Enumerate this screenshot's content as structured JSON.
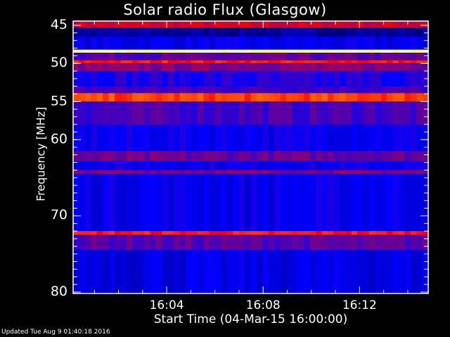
{
  "chart_data": {
    "type": "heatmap",
    "title": "Solar radio Flux (Glasgow)",
    "xlabel": "Start Time (04-Mar-15 16:00:00)",
    "ylabel": "Frequency [MHz]",
    "xlim_minutes": [
      0,
      14.85
    ],
    "ylim": [
      45,
      80
    ],
    "y_ticks": [
      45,
      50,
      55,
      60,
      70,
      80
    ],
    "x_ticks": [
      {
        "minute": 4,
        "label": "16:04"
      },
      {
        "minute": 8,
        "label": "16:08"
      },
      {
        "minute": 12,
        "label": "16:12"
      }
    ],
    "colormap": [
      "#000000",
      "#0000ff",
      "#ff0000",
      "#ffff00",
      "#ffffff"
    ],
    "bands": [
      {
        "f0": 45.0,
        "f1": 45.3,
        "level": 0.55
      },
      {
        "f0": 45.3,
        "f1": 46.5,
        "level": 0.18
      },
      {
        "f0": 46.5,
        "f1": 48.2,
        "level": 0.28
      },
      {
        "f0": 48.2,
        "f1": 48.6,
        "level": 0.95
      },
      {
        "f0": 48.6,
        "f1": 49.6,
        "level": 0.4
      },
      {
        "f0": 49.6,
        "f1": 50.0,
        "level": 0.62
      },
      {
        "f0": 50.0,
        "f1": 51.0,
        "level": 0.45
      },
      {
        "f0": 51.0,
        "f1": 53.0,
        "level": 0.33
      },
      {
        "f0": 53.0,
        "f1": 53.9,
        "level": 0.38
      },
      {
        "f0": 53.9,
        "f1": 55.0,
        "level": 0.66
      },
      {
        "f0": 55.0,
        "f1": 58.0,
        "level": 0.38
      },
      {
        "f0": 58.0,
        "f1": 61.5,
        "level": 0.3
      },
      {
        "f0": 61.5,
        "f1": 62.8,
        "level": 0.42
      },
      {
        "f0": 62.8,
        "f1": 64.0,
        "level": 0.3
      },
      {
        "f0": 64.0,
        "f1": 64.5,
        "level": 0.46
      },
      {
        "f0": 64.5,
        "f1": 72.0,
        "level": 0.29
      },
      {
        "f0": 72.0,
        "f1": 72.5,
        "level": 0.62
      },
      {
        "f0": 72.5,
        "f1": 74.5,
        "level": 0.4
      },
      {
        "f0": 74.5,
        "f1": 80.0,
        "level": 0.27
      }
    ]
  },
  "footer": "Updated Tue Aug  9 01:40:18 2016"
}
